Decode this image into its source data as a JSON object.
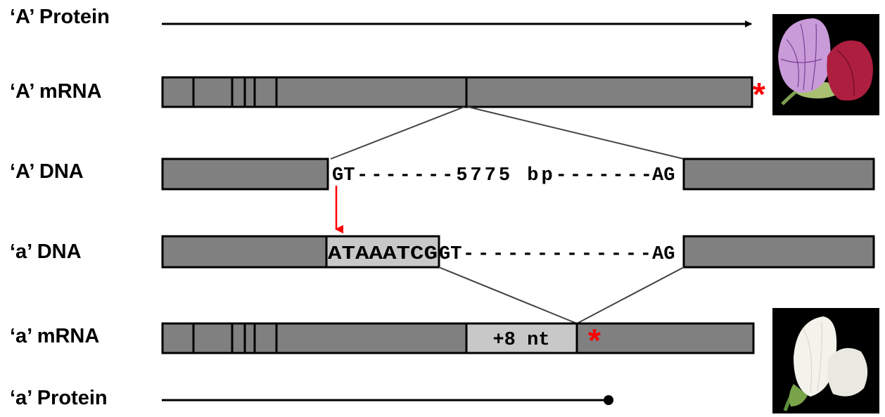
{
  "labels": {
    "A_protein": "‘A’ Protein",
    "A_mrna": "‘A’ mRNA",
    "A_dna": "‘A’ DNA",
    "a_dna": "‘a’ DNA",
    "a_mrna": "‘a’ mRNA",
    "a_protein": "‘a’ Protein"
  },
  "sequences": {
    "A_donor": "GT",
    "A_intron": "-------5775 bp-------",
    "A_acceptor": "AG",
    "a_insert": "ATAAATCG",
    "a_donor": "GT",
    "a_intron": "-------------",
    "a_acceptor": "AG",
    "insertion_label": "+8 nt"
  },
  "markers": {
    "stop_symbol": "*",
    "mutation_color": "#ff0000"
  },
  "colors": {
    "exon": "#808080",
    "insert": "#c8c8c8",
    "outline": "#000000",
    "purple_flower": "#c89ad8",
    "red_wing": "#b0203c",
    "white_flower": "#f4f4ee"
  },
  "images": {
    "A_flower": "purple-pea-flower",
    "a_flower": "white-pea-flower"
  }
}
